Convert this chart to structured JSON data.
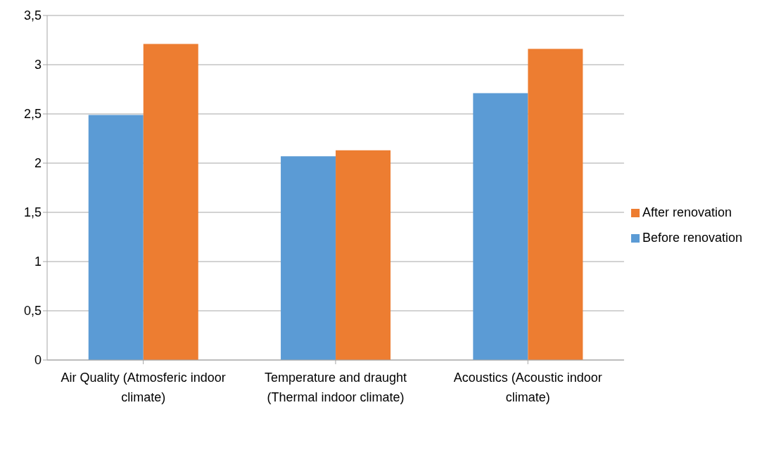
{
  "chart_data": {
    "type": "bar",
    "categories": [
      "Air Quality (Atmosferic indoor climate)",
      "Temperature and draught (Thermal indoor climate)",
      "Acoustics (Acoustic indoor climate)"
    ],
    "series": [
      {
        "name": "Before renovation",
        "color": "#5b9bd5",
        "values": [
          2.49,
          2.07,
          2.71
        ]
      },
      {
        "name": "After renovation",
        "color": "#ed7d31",
        "values": [
          3.21,
          2.13,
          3.16
        ]
      }
    ],
    "ylim": [
      0,
      3.5
    ],
    "yticks": [
      {
        "value": 0,
        "label": "0"
      },
      {
        "value": 0.5,
        "label": "0,5"
      },
      {
        "value": 1,
        "label": "1"
      },
      {
        "value": 1.5,
        "label": "1,5"
      },
      {
        "value": 2,
        "label": "2"
      },
      {
        "value": 2.5,
        "label": "2,5"
      },
      {
        "value": 3,
        "label": "3"
      },
      {
        "value": 3.5,
        "label": "3,5"
      }
    ],
    "grid": "y",
    "legend": "right"
  }
}
